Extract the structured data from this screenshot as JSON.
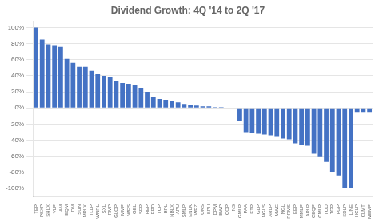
{
  "chart_data": {
    "type": "bar",
    "title": "Dividend Growth: 4Q '14 to 2Q '17",
    "categories": [
      "TEP",
      "PSXP",
      "SHLX",
      "VLP",
      "AM",
      "EQM",
      "DM",
      "SUN",
      "MPLX",
      "TLLP",
      "WNRL",
      "SXL",
      "RMP",
      "GLOP",
      "MMP",
      "WES",
      "GEL",
      "SEP",
      "HEP",
      "EPD",
      "TCP",
      "BPL",
      "NBLX",
      "APU",
      "SMLP",
      "ENLK",
      "WPZ",
      "OKS",
      "SPH",
      "DPM",
      "BWP",
      "CQP",
      "NS",
      "GMLP",
      "PAA",
      "ETP",
      "GLP",
      "NGLS",
      "ARLP",
      "MWE",
      "NGL",
      "RRMS",
      "EEP",
      "MMLP",
      "APLP",
      "CEQP",
      "CMLP",
      "TOO",
      "TGP",
      "FGP",
      "SDLP",
      "LINE",
      "HCLP",
      "CLMT",
      "MEMP"
    ],
    "values": [
      100,
      85,
      79,
      78,
      76,
      61,
      56,
      51,
      51,
      46,
      42,
      40,
      39,
      34,
      31,
      30,
      29,
      25,
      20,
      13,
      11,
      10,
      9,
      7,
      5,
      4,
      3,
      2,
      2,
      1,
      1,
      0,
      0,
      -16,
      -30,
      -31,
      -32,
      -33,
      -34,
      -35,
      -38,
      -39,
      -44,
      -46,
      -47,
      -57,
      -60,
      -67,
      -80,
      -84,
      -100,
      -100,
      -5,
      -5,
      -5
    ],
    "color": "#4472C4",
    "ylim": [
      -110,
      108
    ],
    "yticks": [
      {
        "value": -100,
        "label": "-100%"
      },
      {
        "value": -80,
        "label": "-80%"
      },
      {
        "value": -60,
        "label": "-60%"
      },
      {
        "value": -40,
        "label": "-40%"
      },
      {
        "value": -20,
        "label": "-20%"
      },
      {
        "value": 0,
        "label": "0%"
      },
      {
        "value": 20,
        "label": "20%"
      },
      {
        "value": 40,
        "label": "40%"
      },
      {
        "value": 60,
        "label": "60%"
      },
      {
        "value": 80,
        "label": "80%"
      },
      {
        "value": 100,
        "label": "100%"
      }
    ],
    "grid": true
  }
}
